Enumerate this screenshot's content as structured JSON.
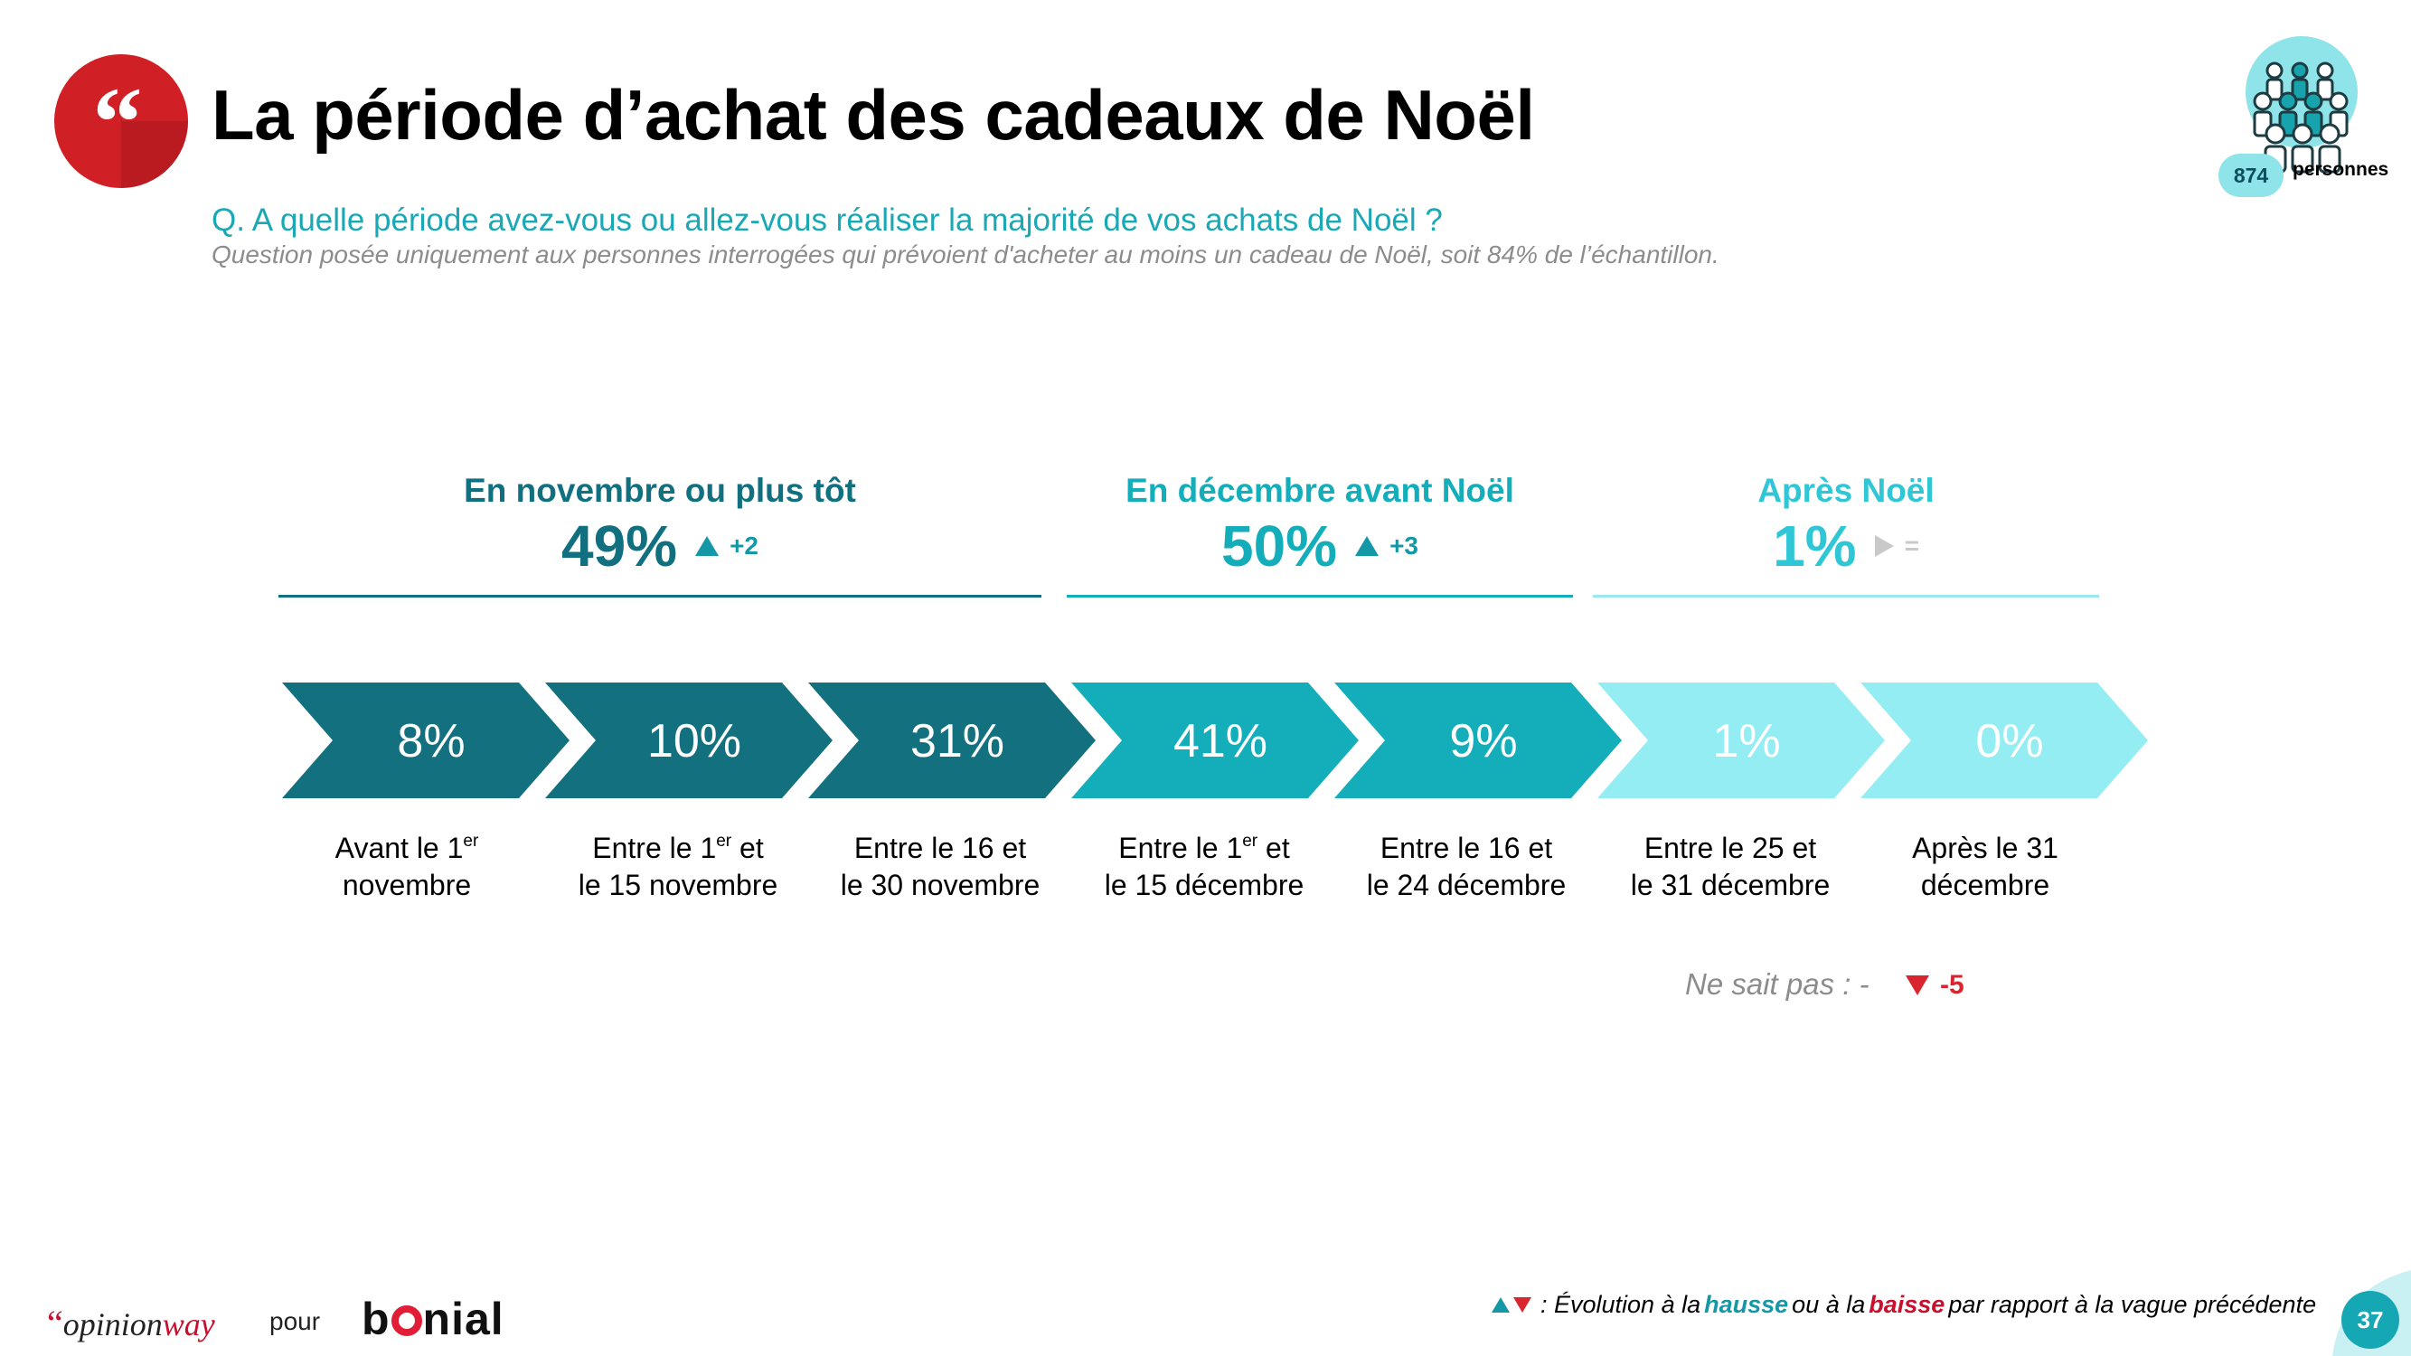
{
  "header": {
    "title": "La période d’achat des cadeaux de Noël",
    "question": "Q. A quelle période avez-vous ou allez-vous réaliser la majorité de vos achats de Noël ?",
    "note": "Question posée uniquement aux personnes interrogées qui prévoient d'acheter au moins un cadeau de Noël, soit 84% de l’échantillon."
  },
  "sample": {
    "count": "874",
    "label": "personnes"
  },
  "groups": [
    {
      "label": "En novembre ou plus tôt",
      "value": "49%",
      "delta": "+2",
      "trend": "up",
      "color": "#11707f"
    },
    {
      "label": "En décembre avant Noël",
      "value": "50%",
      "delta": "+3",
      "trend": "up",
      "color": "#13aeba"
    },
    {
      "label": "Après Noël",
      "value": "1%",
      "delta": "=",
      "trend": "stable",
      "color": "#2fc6d6"
    }
  ],
  "periods": [
    {
      "value": "8%",
      "label_line1": "Avant le 1",
      "sup": "er",
      "label_line1_after": "",
      "label_line2": "novembre",
      "color": "#13707f"
    },
    {
      "value": "10%",
      "label_line1": "Entre le 1",
      "sup": "er",
      "label_line1_after": " et",
      "label_line2": "le 15 novembre",
      "color": "#13707f"
    },
    {
      "value": "31%",
      "label_line1": "Entre le 16 et",
      "sup": "",
      "label_line1_after": "",
      "label_line2": "le 30 novembre",
      "color": "#13707f"
    },
    {
      "value": "41%",
      "label_line1": "Entre le 1",
      "sup": "er",
      "label_line1_after": " et",
      "label_line2": "le 15 décembre",
      "color": "#14aeba"
    },
    {
      "value": "9%",
      "label_line1": "Entre le 16 et",
      "sup": "",
      "label_line1_after": "",
      "label_line2": "le 24 décembre",
      "color": "#14aeba"
    },
    {
      "value": "1%",
      "label_line1": "Entre le 25 et",
      "sup": "",
      "label_line1_after": "",
      "label_line2": "le 31 décembre",
      "color": "#94edf3"
    },
    {
      "value": "0%",
      "label_line1": "Après le 31",
      "sup": "",
      "label_line1_after": "",
      "label_line2": "décembre",
      "color": "#94edf3"
    }
  ],
  "ne_sait_pas": {
    "label": "Ne sait pas :  -",
    "delta": "-5",
    "trend": "down"
  },
  "footer": {
    "brand_q": "“",
    "brand_opinion": "opinion",
    "brand_way": "way",
    "pour": "pour",
    "partner_b": "b",
    "partner_rest": "nial",
    "legend_prefix": ": Évolution à la ",
    "legend_hausse": "hausse",
    "legend_mid": " ou à la ",
    "legend_baisse": "baisse",
    "legend_suffix": " par rapport à la vague précédente",
    "page_number": "37"
  },
  "colors": {
    "accent": "#1aa8b5",
    "dark_teal": "#11707f",
    "mid_teal": "#13aeba",
    "light_teal": "#94edf3",
    "red": "#d9262e"
  }
}
